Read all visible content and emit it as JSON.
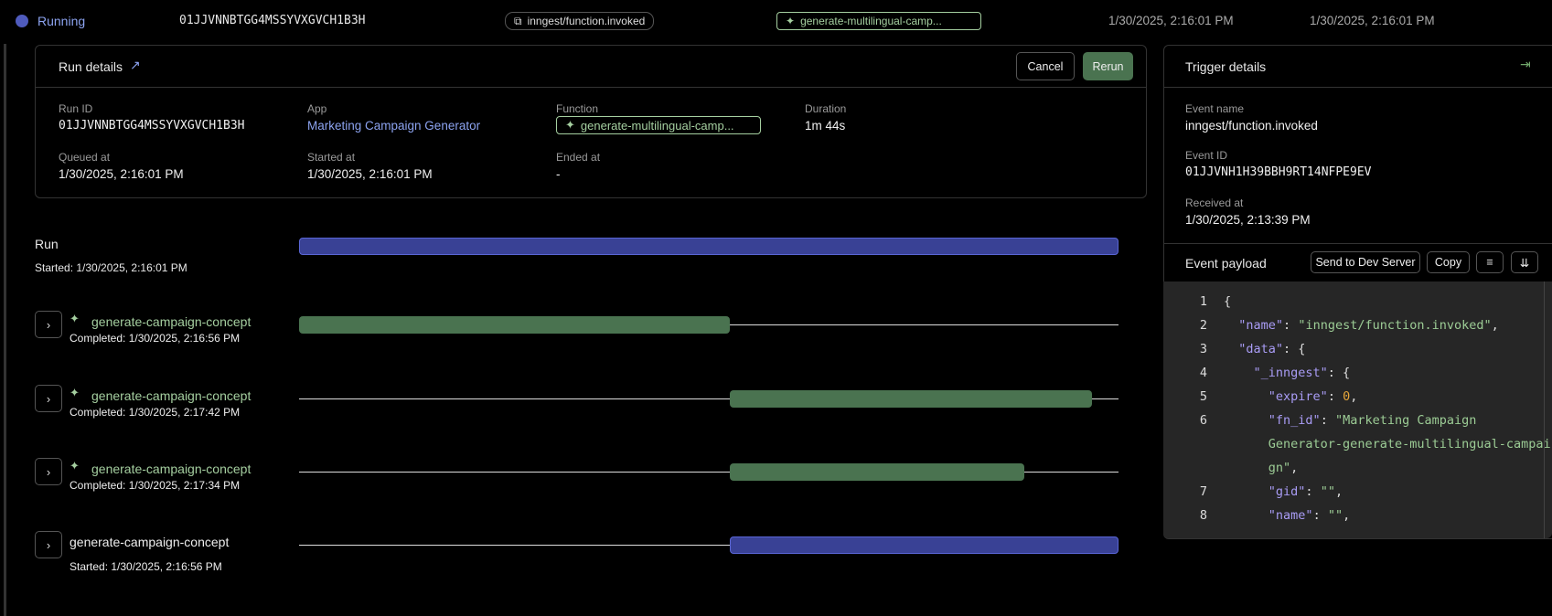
{
  "top": {
    "status": "Running",
    "run_id": "01JJVNNBTGG4MSSYVXGVCH1B3H",
    "event": "inngest/function.invoked",
    "function": "generate-multilingual-camp...",
    "queued": "1/30/2025, 2:16:01 PM",
    "started": "1/30/2025, 2:16:01 PM"
  },
  "run_details": {
    "title": "Run details",
    "cancel": "Cancel",
    "rerun": "Rerun",
    "fields": {
      "run_id_label": "Run ID",
      "run_id": "01JJVNNBTGG4MSSYVXGVCH1B3H",
      "app_label": "App",
      "app": "Marketing Campaign Generator",
      "function_label": "Function",
      "function": "generate-multilingual-camp...",
      "duration_label": "Duration",
      "duration": "1m 44s",
      "queued_label": "Queued at",
      "queued": "1/30/2025, 2:16:01 PM",
      "started_label": "Started at",
      "started": "1/30/2025, 2:16:01 PM",
      "ended_label": "Ended at",
      "ended": "-"
    }
  },
  "trigger": {
    "title": "Trigger details",
    "event_name_label": "Event name",
    "event_name": "inngest/function.invoked",
    "event_id_label": "Event ID",
    "event_id": "01JJVNH1H39BBH9RT14NFPE9EV",
    "received_label": "Received at",
    "received": "1/30/2025, 2:13:39 PM",
    "payload_label": "Event payload",
    "send_dev": "Send to Dev Server",
    "copy": "Copy",
    "lines": [
      "1",
      "2",
      "3",
      "4",
      "5",
      "6",
      "7",
      "8"
    ]
  },
  "timeline": {
    "run": {
      "name": "Run",
      "sub": "Started: 1/30/2025, 2:16:01 PM",
      "status": "running"
    },
    "steps": [
      {
        "name": "generate-campaign-concept",
        "sub": "Completed: 1/30/2025, 2:16:56 PM",
        "status": "completed",
        "ai": true,
        "start": 0,
        "end": 0.526
      },
      {
        "name": "generate-campaign-concept",
        "sub": "Completed: 1/30/2025, 2:17:42 PM",
        "status": "completed",
        "ai": true,
        "start": 0.526,
        "end": 0.968
      },
      {
        "name": "generate-campaign-concept",
        "sub": "Completed: 1/30/2025, 2:17:34 PM",
        "status": "completed",
        "ai": true,
        "start": 0.526,
        "end": 0.885
      },
      {
        "name": "generate-campaign-concept",
        "sub": "Started: 1/30/2025, 2:16:56 PM",
        "status": "running",
        "ai": false,
        "start": 0.526,
        "end": 1
      }
    ]
  },
  "colors": {
    "running": "#394195",
    "completed": "#4a7350",
    "accent_green": "#a5cfa0",
    "link": "#8ca3f0"
  }
}
